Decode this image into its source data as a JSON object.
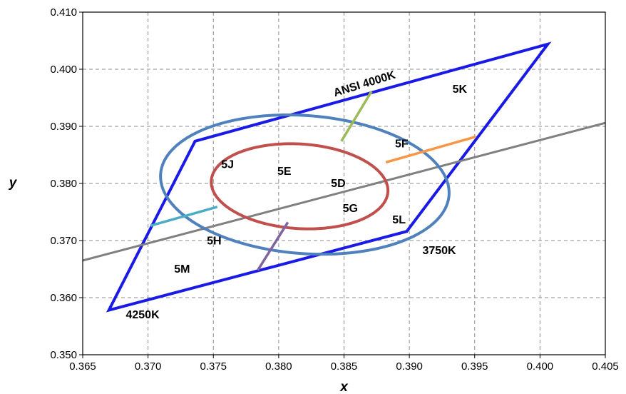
{
  "chart_data": {
    "type": "line",
    "title": "",
    "xlabel": "x",
    "ylabel": "y",
    "xlim": [
      0.365,
      0.405
    ],
    "ylim": [
      0.35,
      0.41
    ],
    "x_ticks": [
      "0.365",
      "0.370",
      "0.375",
      "0.380",
      "0.385",
      "0.390",
      "0.395",
      "0.400",
      "0.405"
    ],
    "y_ticks": [
      "0.350",
      "0.360",
      "0.370",
      "0.380",
      "0.390",
      "0.400",
      "0.410"
    ],
    "grid": true,
    "series": [
      {
        "kind": "polygon",
        "color": "#1a1ae6",
        "points": [
          [
            0.367,
            0.3578
          ],
          [
            0.3736,
            0.3874
          ],
          [
            0.4006,
            0.4044
          ],
          [
            0.3898,
            0.3716
          ]
        ]
      },
      {
        "kind": "line",
        "color": "#808080",
        "points": [
          [
            0.365,
            0.3665
          ],
          [
            0.405,
            0.3906
          ]
        ]
      },
      {
        "kind": "ellipse",
        "color": "#4f81bd",
        "center": [
          0.382,
          0.3798
        ],
        "semi_axis_x": 0.0107,
        "semi_axis_y": 0.0125,
        "rotation_deg": 25
      },
      {
        "kind": "ellipse",
        "color": "#c0504d",
        "center": [
          0.3816,
          0.3795
        ],
        "semi_axis_x": 0.0066,
        "semi_axis_y": 0.0076,
        "rotation_deg": 23
      },
      {
        "kind": "line",
        "color": "#9bbb59",
        "points": [
          [
            0.3848,
            0.3874
          ],
          [
            0.3871,
            0.3961
          ]
        ]
      },
      {
        "kind": "line",
        "color": "#f79646",
        "points": [
          [
            0.3882,
            0.3837
          ],
          [
            0.3951,
            0.3882
          ]
        ]
      },
      {
        "kind": "line",
        "color": "#4bacc6",
        "points": [
          [
            0.3702,
            0.3726
          ],
          [
            0.3753,
            0.3759
          ]
        ]
      },
      {
        "kind": "line",
        "color": "#8064a2",
        "points": [
          [
            0.3784,
            0.3648
          ],
          [
            0.3807,
            0.3732
          ]
        ]
      }
    ],
    "annotations": [
      {
        "text": "ANSI 4000K",
        "x": 0.3843,
        "y": 0.3952,
        "rotation": -17
      },
      {
        "text": "5K",
        "x": 0.3933,
        "y": 0.3959
      },
      {
        "text": "5F",
        "x": 0.3889,
        "y": 0.3863
      },
      {
        "text": "5J",
        "x": 0.3756,
        "y": 0.3827
      },
      {
        "text": "5E",
        "x": 0.3799,
        "y": 0.3815
      },
      {
        "text": "5D",
        "x": 0.384,
        "y": 0.3794
      },
      {
        "text": "5G",
        "x": 0.3849,
        "y": 0.375
      },
      {
        "text": "5L",
        "x": 0.3887,
        "y": 0.373
      },
      {
        "text": "5H",
        "x": 0.3745,
        "y": 0.3693
      },
      {
        "text": "3750K",
        "x": 0.391,
        "y": 0.3676
      },
      {
        "text": "5M",
        "x": 0.372,
        "y": 0.3644
      },
      {
        "text": "4250K",
        "x": 0.3683,
        "y": 0.3564
      }
    ]
  }
}
